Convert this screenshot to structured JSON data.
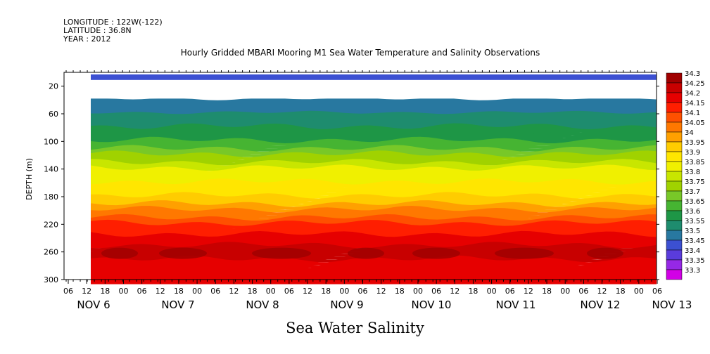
{
  "header": {
    "longitude": "LONGITUDE : 122W(-122)",
    "latitude": "LATITUDE : 36.8N",
    "year": "YEAR : 2012"
  },
  "chart_data": {
    "type": "heatmap",
    "title": "Hourly Gridded MBARI Mooring M1 Sea Water Temperature and Salinity Observations",
    "xlabel": "Sea Water Salinity",
    "ylabel": "DEPTH (m)",
    "ylim": [
      300,
      0
    ],
    "y_ticks": [
      20,
      60,
      100,
      140,
      180,
      220,
      260,
      300
    ],
    "x_hour_ticks": [
      "06",
      "12",
      "18",
      "00",
      "06",
      "12",
      "18",
      "00",
      "06",
      "12",
      "18",
      "00",
      "06",
      "12",
      "18",
      "00",
      "06",
      "12",
      "18",
      "00",
      "06",
      "12",
      "18",
      "00",
      "06",
      "12",
      "18",
      "00",
      "06",
      "12",
      "18",
      "00",
      "06"
    ],
    "x_date_labels": [
      "NOV  6",
      "NOV  7",
      "NOV  8",
      "NOV  9",
      "NOV 10",
      "NOV 11",
      "NOV 12",
      "NOV 13"
    ],
    "colorbar_levels": [
      "34.3",
      "34.25",
      "34.2",
      "34.15",
      "34.1",
      "34.05",
      "34",
      "33.95",
      "33.9",
      "33.85",
      "33.8",
      "33.75",
      "33.7",
      "33.65",
      "33.6",
      "33.55",
      "33.5",
      "33.45",
      "33.4",
      "33.35",
      "33.3"
    ],
    "colorbar_colors": [
      "#a00000",
      "#c80000",
      "#e60000",
      "#ff1e00",
      "#ff5000",
      "#ff7800",
      "#ffa000",
      "#ffcc00",
      "#ffe600",
      "#f0f000",
      "#c8e600",
      "#a0d200",
      "#78c828",
      "#46b432",
      "#1e9646",
      "#1e8c6e",
      "#2878a0",
      "#3c50d2",
      "#5a3cdc",
      "#9628e6",
      "#d200e6"
    ],
    "depth_profile": [
      {
        "depth": 10,
        "salinity": 33.45
      },
      {
        "depth": 40,
        "salinity": 33.5
      },
      {
        "depth": 60,
        "salinity": 33.55
      },
      {
        "depth": 80,
        "salinity": 33.6
      },
      {
        "depth": 100,
        "salinity": 33.65
      },
      {
        "depth": 120,
        "salinity": 33.75
      },
      {
        "depth": 140,
        "salinity": 33.85
      },
      {
        "depth": 160,
        "salinity": 33.9
      },
      {
        "depth": 180,
        "salinity": 33.95
      },
      {
        "depth": 200,
        "salinity": 34.05
      },
      {
        "depth": 220,
        "salinity": 34.15
      },
      {
        "depth": 250,
        "salinity": 34.25
      },
      {
        "depth": 270,
        "salinity": 34.25
      },
      {
        "depth": 295,
        "salinity": 34.2
      }
    ]
  }
}
